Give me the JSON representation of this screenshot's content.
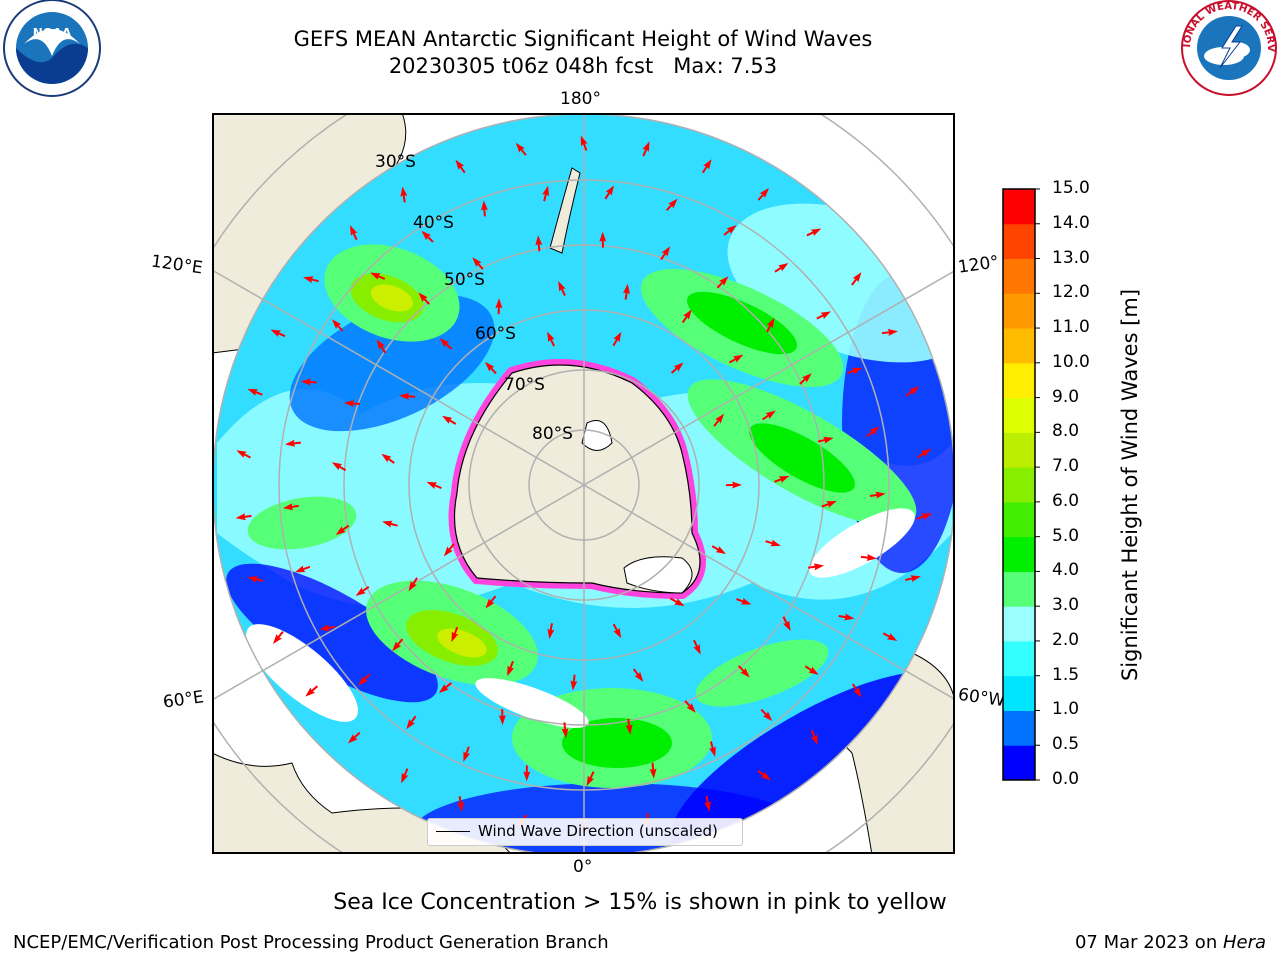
{
  "header": {
    "title_line1": "GEFS MEAN Antarctic Significant Height of Wind Waves",
    "title_line2": "20230305 t06z 048h fcst   Max: 7.53"
  },
  "logos": {
    "noaa_text": "NOAA",
    "nws_text": "NATIONAL WEATHER SERVICE"
  },
  "map": {
    "lon_labels": {
      "top": "180°",
      "bottom": "0°",
      "upper_left": "120°E",
      "lower_left": "60°E",
      "upper_right": "120°",
      "lower_right": "60°W"
    },
    "lat_labels": [
      "30°S",
      "40°S",
      "50°S",
      "60°S",
      "70°S",
      "80°S"
    ],
    "land_color": "#efecdc",
    "arrow_color": "#ff0000",
    "sea_ice_color": "#ff44dd"
  },
  "colorbar": {
    "label": "Significant Height of Wind Waves [m]",
    "ticks": [
      "15.0",
      "14.0",
      "13.0",
      "12.0",
      "11.0",
      "10.0",
      "9.0",
      "8.0",
      "7.0",
      "6.0",
      "5.0",
      "4.0",
      "3.0",
      "2.0",
      "1.5",
      "1.0",
      "0.5",
      "0.0"
    ],
    "colors": [
      "#0000ff",
      "#0073ff",
      "#00e5ff",
      "#33ffff",
      "#99ffff",
      "#55ff77",
      "#00ee00",
      "#44ee00",
      "#88ee00",
      "#bbee00",
      "#ddff00",
      "#ffee00",
      "#ffbb00",
      "#ff9900",
      "#ff7700",
      "#ff4400",
      "#ff0000"
    ]
  },
  "legend": {
    "label": "Wind Wave Direction (unscaled)"
  },
  "footer": {
    "note": "Sea Ice Concentration > 15% is shown in pink to yellow",
    "credit": "NCEP/EMC/Verification Post Processing Product Generation Branch",
    "date_prefix": "07 Mar 2023 on ",
    "machine": "Hera"
  }
}
